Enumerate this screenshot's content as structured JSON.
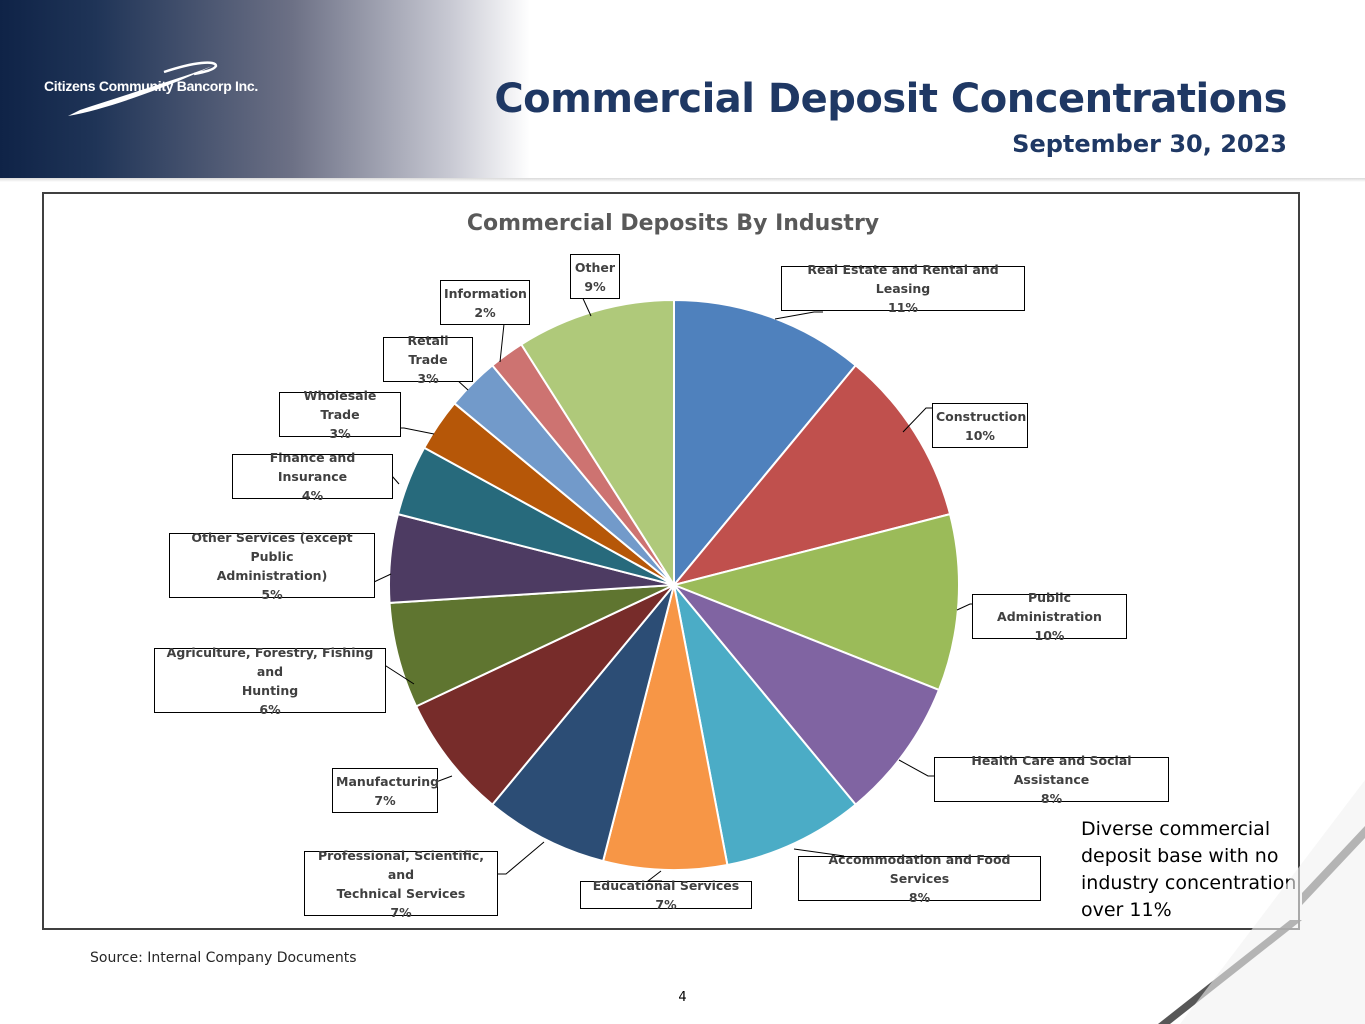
{
  "header": {
    "logo_text": "Citizens Community Bancorp Inc.",
    "title": "Commercial Deposit Concentrations",
    "subtitle": "September 30, 2023"
  },
  "chart_data": {
    "type": "pie",
    "title": "Commercial Deposits By Industry",
    "slices": [
      {
        "label": "Real Estate and Rental and Leasing",
        "value": 11,
        "display": "11%",
        "color": "#4f81bd"
      },
      {
        "label": "Construction",
        "value": 10,
        "display": "10%",
        "color": "#c0504d"
      },
      {
        "label": "Public Administration",
        "value": 10,
        "display": "10%",
        "color": "#9bbb59"
      },
      {
        "label": "Health Care and Social Assistance",
        "value": 8,
        "display": "8%",
        "color": "#8064a2"
      },
      {
        "label": "Accommodation and Food Services",
        "value": 8,
        "display": "8%",
        "color": "#4bacc6"
      },
      {
        "label": "Educational Services",
        "value": 7,
        "display": "7%",
        "color": "#f79646"
      },
      {
        "label": "Professional, Scientific, and Technical Services",
        "value": 7,
        "display": "7%",
        "color": "#2c4d75"
      },
      {
        "label": "Manufacturing",
        "value": 7,
        "display": "7%",
        "color": "#772c2a"
      },
      {
        "label": "Agriculture, Forestry, Fishing and Hunting",
        "value": 6,
        "display": "6%",
        "color": "#5f7530"
      },
      {
        "label": "Other Services (except Public Administration)",
        "value": 5,
        "display": "5%",
        "color": "#4d3b62"
      },
      {
        "label": "Finance and Insurance",
        "value": 4,
        "display": "4%",
        "color": "#276a7c"
      },
      {
        "label": "Wholesale Trade",
        "value": 3,
        "display": "3%",
        "color": "#b65708"
      },
      {
        "label": "Retail Trade",
        "value": 3,
        "display": "3%",
        "color": "#729aca"
      },
      {
        "label": "Information",
        "value": 2,
        "display": "2%",
        "color": "#cd7371"
      },
      {
        "label": "Other",
        "value": 9,
        "display": "9%",
        "color": "#afc97a"
      }
    ]
  },
  "labels": {
    "real_estate": {
      "line1": "Real Estate and Rental and Leasing",
      "pct": "11%"
    },
    "construction": {
      "line1": "Construction",
      "pct": "10%"
    },
    "public_admin": {
      "line1": "Public Administration",
      "pct": "10%"
    },
    "health_care": {
      "line1": "Health Care and Social Assistance",
      "pct": "8%"
    },
    "accommodation": {
      "line1": "Accommodation and Food Services",
      "pct": "8%"
    },
    "educational": {
      "line1": "Educational Services 7%"
    },
    "professional": {
      "line1": "Professional, Scientific, and",
      "line2": "Technical Services",
      "pct": "7%"
    },
    "manufacturing": {
      "line1": "Manufacturing",
      "pct": "7%"
    },
    "agriculture": {
      "line1": "Agriculture, Forestry, Fishing and",
      "line2": "Hunting",
      "pct": "6%"
    },
    "other_services": {
      "line1": "Other Services (except Public",
      "line2": "Administration)",
      "pct": "5%"
    },
    "finance": {
      "line1": "Finance and Insurance",
      "pct": "4%"
    },
    "wholesale": {
      "line1": "Wholesale Trade",
      "pct": "3%"
    },
    "retail": {
      "line1": "Retail Trade",
      "pct": "3%"
    },
    "information": {
      "line1": "Information",
      "pct": "2%"
    },
    "other": {
      "line1": "Other",
      "pct": "9%"
    }
  },
  "note": "Diverse commercial deposit base with no industry concentration over 11%",
  "source": "Source: Internal Company Documents",
  "page_number": "4",
  "colors": {
    "title": "#1f3864",
    "header_dark": "#0f2347"
  }
}
